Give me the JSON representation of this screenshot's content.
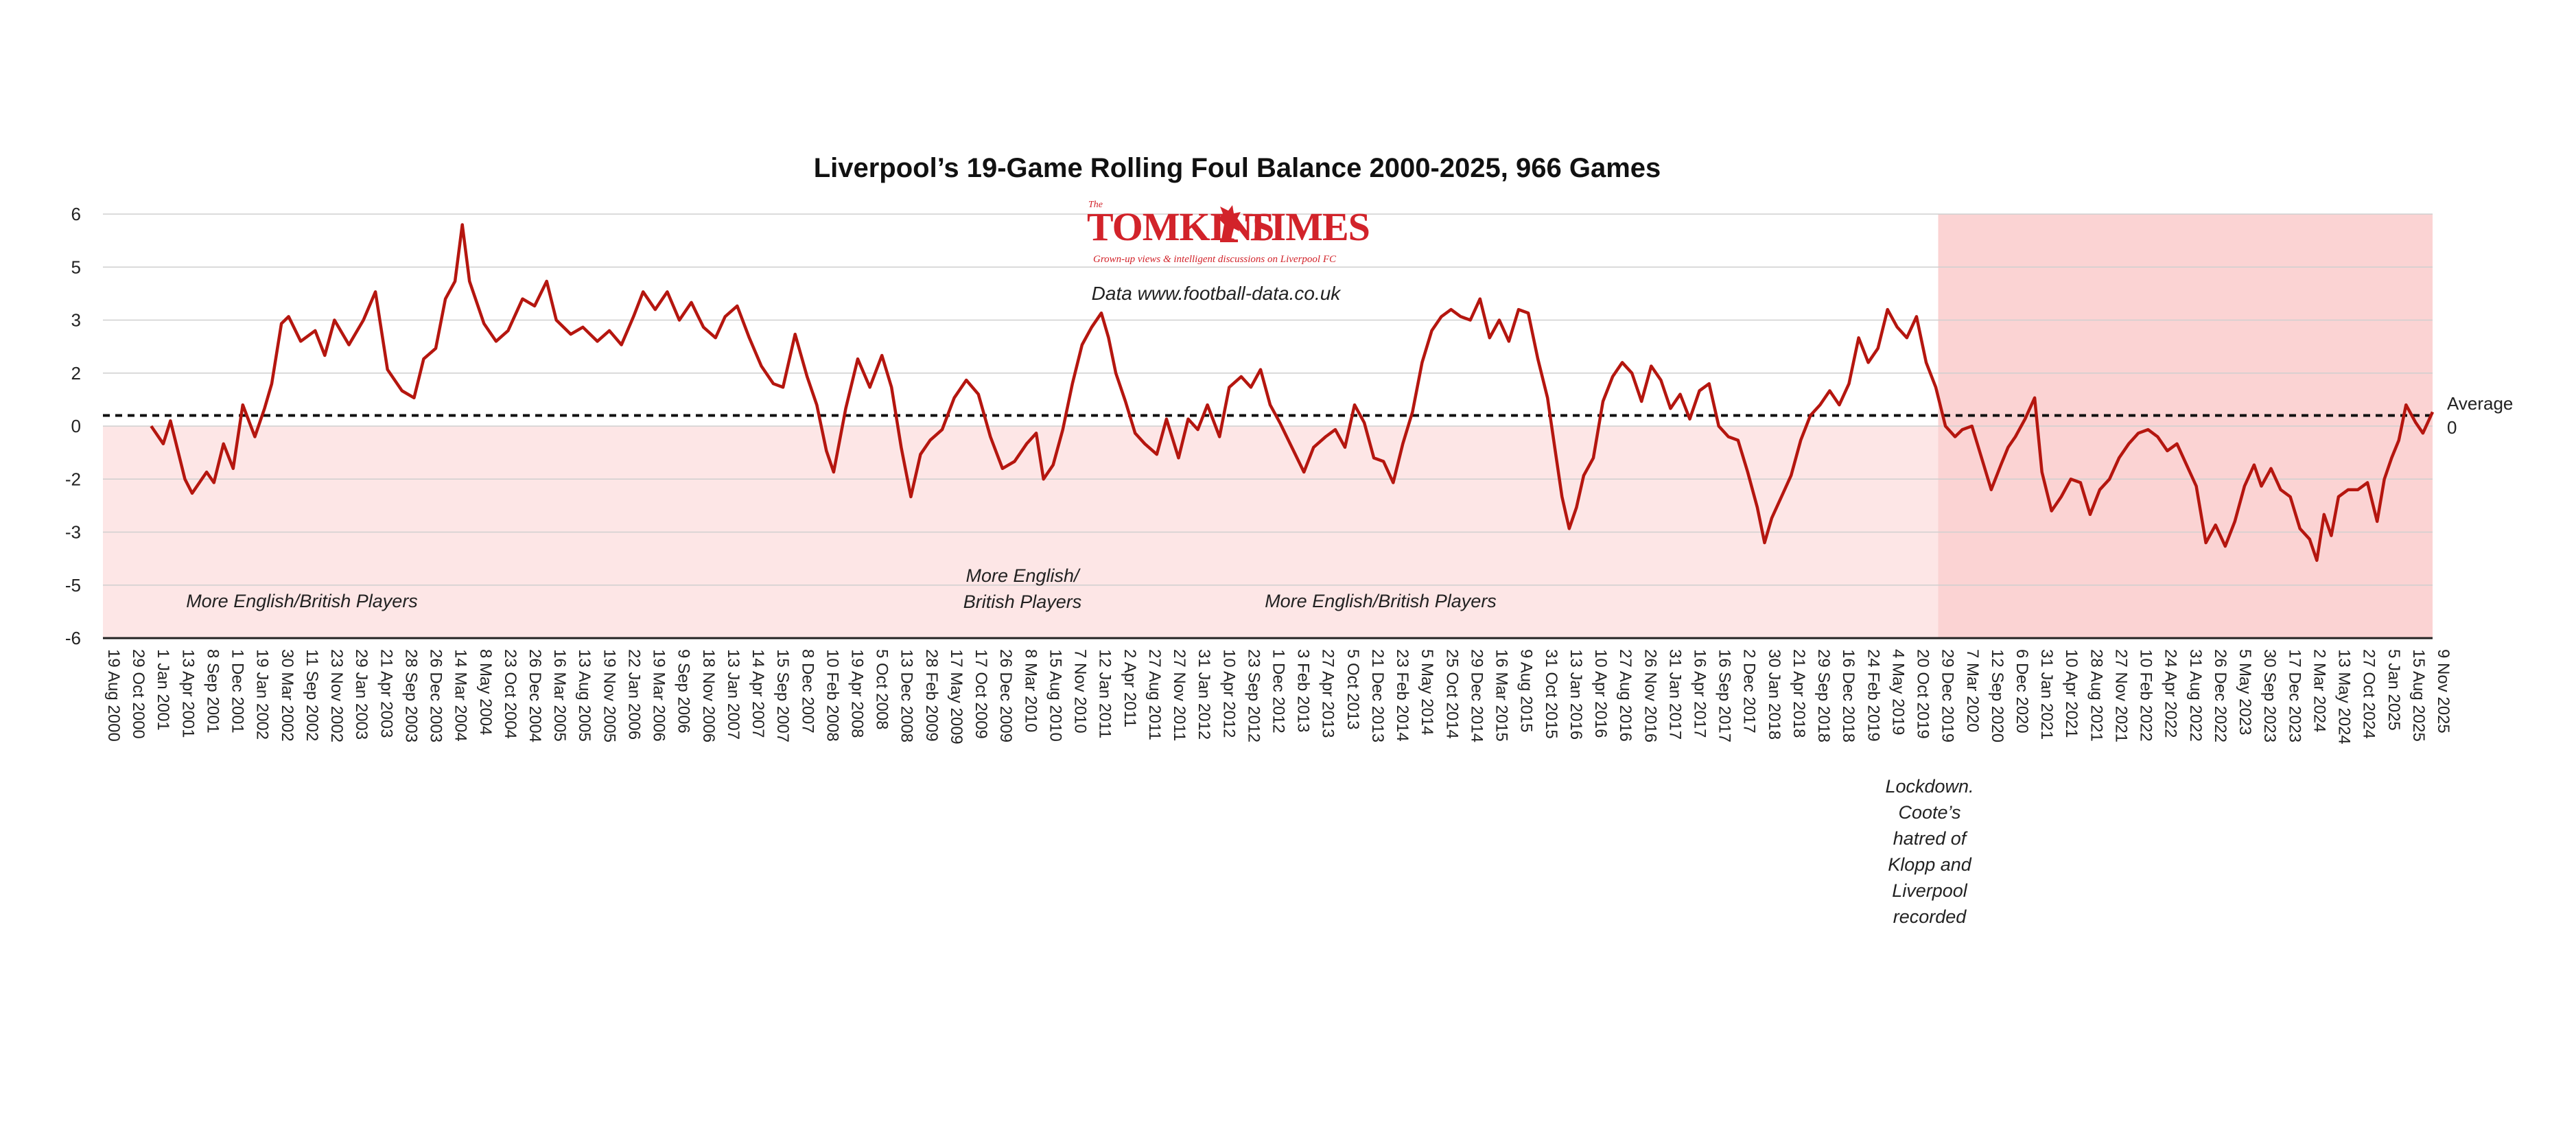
{
  "chart_data": {
    "type": "line",
    "title": "Liverpool’s 19-Game Rolling Foul Balance 2000-2025, 966 Games",
    "source": "Data www.football-data.co.uk",
    "logo": {
      "the": "The",
      "left": "TOMKINS",
      "right": "TIMES",
      "tagline": "Grown-up views & intelligent discussions on Liverpool FC"
    },
    "y_tick_labels": [
      "6",
      "5",
      "3",
      "2",
      "0",
      "-2",
      "-3",
      "-5",
      "-6"
    ],
    "ylim": [
      -6,
      6
    ],
    "grid": true,
    "average": {
      "value": 0.3,
      "label_line1": "Average",
      "label_line2": "0"
    },
    "x_tick_labels": [
      "19 Aug 2000",
      "29 Oct 2000",
      "1 Jan 2001",
      "13 Apr 2001",
      "8 Sep 2001",
      "1 Dec 2001",
      "19 Jan 2002",
      "30 Mar 2002",
      "11 Sep 2002",
      "23 Nov 2002",
      "29 Jan 2003",
      "21 Apr 2003",
      "28 Sep 2003",
      "26 Dec 2003",
      "14 Mar 2004",
      "8 May 2004",
      "23 Oct 2004",
      "26 Dec 2004",
      "16 Mar 2005",
      "13 Aug 2005",
      "19 Nov 2005",
      "22 Jan 2006",
      "19 Mar 2006",
      "9 Sep 2006",
      "18 Nov 2006",
      "13 Jan 2007",
      "14 Apr 2007",
      "15 Sep 2007",
      "8 Dec 2007",
      "10 Feb 2008",
      "19 Apr 2008",
      "5 Oct 2008",
      "13 Dec 2008",
      "28 Feb 2009",
      "17 May 2009",
      "17 Oct 2009",
      "26 Dec 2009",
      "8 Mar 2010",
      "15 Aug 2010",
      "7 Nov 2010",
      "12 Jan 2011",
      "2 Apr 2011",
      "27 Aug 2011",
      "27 Nov 2011",
      "31 Jan 2012",
      "10 Apr 2012",
      "23 Sep 2012",
      "1 Dec 2012",
      "3 Feb 2013",
      "27 Apr 2013",
      "5 Oct 2013",
      "21 Dec 2013",
      "23 Feb 2014",
      "5 May 2014",
      "25 Oct 2014",
      "29 Dec 2014",
      "16 Mar 2015",
      "9 Aug 2015",
      "31 Oct 2015",
      "13 Jan 2016",
      "10 Apr 2016",
      "27 Aug 2016",
      "26 Nov 2016",
      "31 Jan 2017",
      "16 Apr 2017",
      "16 Sep 2017",
      "2 Dec 2017",
      "30 Jan 2018",
      "21 Apr 2018",
      "29 Sep 2018",
      "16 Dec 2018",
      "24 Feb 2019",
      "4 May 2019",
      "20 Oct 2019",
      "29 Dec 2019",
      "7 Mar 2020",
      "12 Sep 2020",
      "6 Dec 2020",
      "31 Jan 2021",
      "10 Apr 2021",
      "28 Aug 2021",
      "27 Nov 2021",
      "10 Feb 2022",
      "24 Apr 2022",
      "31 Aug 2022",
      "26 Dec 2022",
      "5 May 2023",
      "30 Sep 2023",
      "17 Dec 2023",
      "2 Mar 2024",
      "13 May 2024",
      "27 Oct 2024",
      "5 Jan 2025",
      "15 Aug 2025",
      "9 Nov 2025"
    ],
    "series": [
      {
        "color": "#b5160f",
        "points": [
          [
            20,
            0
          ],
          [
            25,
            -0.5
          ],
          [
            28,
            0.15
          ],
          [
            34,
            -1.5
          ],
          [
            37,
            -1.9
          ],
          [
            43,
            -1.3
          ],
          [
            46,
            -1.6
          ],
          [
            50,
            -0.5
          ],
          [
            54,
            -1.2
          ],
          [
            58,
            0.6
          ],
          [
            63,
            -0.3
          ],
          [
            67,
            0.5
          ],
          [
            70,
            1.2
          ],
          [
            74,
            2.9
          ],
          [
            77,
            3.1
          ],
          [
            82,
            2.4
          ],
          [
            88,
            2.7
          ],
          [
            92,
            2.0
          ],
          [
            96,
            3.0
          ],
          [
            102,
            2.3
          ],
          [
            108,
            3.0
          ],
          [
            113,
            3.8
          ],
          [
            118,
            1.6
          ],
          [
            124,
            1.0
          ],
          [
            129,
            0.8
          ],
          [
            133,
            1.9
          ],
          [
            138,
            2.2
          ],
          [
            142,
            3.6
          ],
          [
            146,
            4.1
          ],
          [
            149,
            5.7
          ],
          [
            152,
            4.1
          ],
          [
            158,
            2.9
          ],
          [
            163,
            2.4
          ],
          [
            168,
            2.7
          ],
          [
            174,
            3.6
          ],
          [
            179,
            3.4
          ],
          [
            184,
            4.1
          ],
          [
            188,
            3.0
          ],
          [
            194,
            2.6
          ],
          [
            199,
            2.8
          ],
          [
            205,
            2.4
          ],
          [
            210,
            2.7
          ],
          [
            215,
            2.3
          ],
          [
            220,
            3.1
          ],
          [
            224,
            3.8
          ],
          [
            229,
            3.3
          ],
          [
            234,
            3.8
          ],
          [
            239,
            3.0
          ],
          [
            244,
            3.5
          ],
          [
            249,
            2.8
          ],
          [
            254,
            2.5
          ],
          [
            258,
            3.1
          ],
          [
            263,
            3.4
          ],
          [
            268,
            2.5
          ],
          [
            273,
            1.7
          ],
          [
            278,
            1.2
          ],
          [
            282,
            1.1
          ],
          [
            287,
            2.6
          ],
          [
            292,
            1.4
          ],
          [
            296,
            0.6
          ],
          [
            300,
            -0.7
          ],
          [
            303,
            -1.3
          ],
          [
            308,
            0.5
          ],
          [
            313,
            1.9
          ],
          [
            318,
            1.1
          ],
          [
            323,
            2.0
          ],
          [
            327,
            1.1
          ],
          [
            331,
            -0.6
          ],
          [
            335,
            -2.0
          ],
          [
            339,
            -0.8
          ],
          [
            343,
            -0.4
          ],
          [
            348,
            -0.1
          ],
          [
            353,
            0.8
          ],
          [
            358,
            1.3
          ],
          [
            363,
            0.9
          ],
          [
            368,
            -0.3
          ],
          [
            373,
            -1.2
          ],
          [
            378,
            -1.0
          ],
          [
            383,
            -0.5
          ],
          [
            387,
            -0.2
          ],
          [
            390,
            -1.5
          ],
          [
            394,
            -1.1
          ],
          [
            398,
            -0.1
          ],
          [
            402,
            1.2
          ],
          [
            406,
            2.3
          ],
          [
            410,
            2.8
          ],
          [
            414,
            3.2
          ],
          [
            417,
            2.5
          ],
          [
            420,
            1.5
          ],
          [
            424,
            0.7
          ],
          [
            428,
            -0.2
          ],
          [
            432,
            -0.5
          ],
          [
            437,
            -0.8
          ],
          [
            441,
            0.2
          ],
          [
            446,
            -0.9
          ],
          [
            450,
            0.2
          ],
          [
            454,
            -0.1
          ],
          [
            458,
            0.6
          ],
          [
            463,
            -0.3
          ],
          [
            467,
            1.1
          ],
          [
            472,
            1.4
          ],
          [
            476,
            1.1
          ],
          [
            480,
            1.6
          ],
          [
            484,
            0.6
          ],
          [
            488,
            0.1
          ],
          [
            493,
            -0.6
          ],
          [
            498,
            -1.3
          ],
          [
            502,
            -0.6
          ],
          [
            507,
            -0.3
          ],
          [
            511,
            -0.1
          ],
          [
            515,
            -0.6
          ],
          [
            519,
            0.6
          ],
          [
            523,
            0.1
          ],
          [
            527,
            -0.9
          ],
          [
            531,
            -1.0
          ],
          [
            535,
            -1.6
          ],
          [
            539,
            -0.5
          ],
          [
            543,
            0.4
          ],
          [
            547,
            1.8
          ],
          [
            551,
            2.7
          ],
          [
            555,
            3.1
          ],
          [
            559,
            3.3
          ],
          [
            563,
            3.1
          ],
          [
            567,
            3.0
          ],
          [
            571,
            3.6
          ],
          [
            575,
            2.5
          ],
          [
            579,
            3.0
          ],
          [
            583,
            2.4
          ],
          [
            587,
            3.3
          ],
          [
            591,
            3.2
          ],
          [
            595,
            1.9
          ],
          [
            599,
            0.8
          ],
          [
            602,
            -0.6
          ],
          [
            605,
            -2.0
          ],
          [
            608,
            -2.9
          ],
          [
            611,
            -2.3
          ],
          [
            614,
            -1.4
          ],
          [
            618,
            -0.9
          ],
          [
            622,
            0.7
          ],
          [
            626,
            1.4
          ],
          [
            630,
            1.8
          ],
          [
            634,
            1.5
          ],
          [
            638,
            0.7
          ],
          [
            642,
            1.7
          ],
          [
            646,
            1.3
          ],
          [
            650,
            0.5
          ],
          [
            654,
            0.9
          ],
          [
            658,
            0.2
          ],
          [
            662,
            1.0
          ],
          [
            666,
            1.2
          ],
          [
            670,
            0.0
          ],
          [
            674,
            -0.3
          ],
          [
            678,
            -0.4
          ],
          [
            682,
            -1.3
          ],
          [
            686,
            -2.3
          ],
          [
            689,
            -3.3
          ],
          [
            692,
            -2.6
          ],
          [
            696,
            -2.0
          ],
          [
            700,
            -1.4
          ],
          [
            704,
            -0.4
          ],
          [
            708,
            0.3
          ],
          [
            712,
            0.6
          ],
          [
            716,
            1.0
          ],
          [
            720,
            0.6
          ],
          [
            724,
            1.2
          ],
          [
            728,
            2.5
          ],
          [
            732,
            1.8
          ],
          [
            736,
            2.2
          ],
          [
            740,
            3.3
          ],
          [
            744,
            2.8
          ],
          [
            748,
            2.5
          ],
          [
            752,
            3.1
          ],
          [
            756,
            1.8
          ],
          [
            760,
            1.1
          ],
          [
            764,
            0.0
          ],
          [
            768,
            -0.3
          ],
          [
            771,
            -0.1
          ],
          [
            775,
            0.0
          ],
          [
            779,
            -0.9
          ],
          [
            783,
            -1.8
          ],
          [
            787,
            -1.1
          ],
          [
            790,
            -0.6
          ],
          [
            793,
            -0.3
          ],
          [
            797,
            0.2
          ],
          [
            801,
            0.8
          ],
          [
            804,
            -1.3
          ],
          [
            808,
            -2.4
          ],
          [
            812,
            -2.0
          ],
          [
            816,
            -1.5
          ],
          [
            820,
            -1.6
          ],
          [
            824,
            -2.5
          ],
          [
            828,
            -1.8
          ],
          [
            832,
            -1.5
          ],
          [
            836,
            -0.9
          ],
          [
            840,
            -0.5
          ],
          [
            844,
            -0.2
          ],
          [
            848,
            -0.1
          ],
          [
            852,
            -0.3
          ],
          [
            856,
            -0.7
          ],
          [
            860,
            -0.5
          ],
          [
            864,
            -1.1
          ],
          [
            868,
            -1.7
          ],
          [
            872,
            -3.3
          ],
          [
            876,
            -2.8
          ],
          [
            880,
            -3.4
          ],
          [
            884,
            -2.7
          ],
          [
            888,
            -1.7
          ],
          [
            892,
            -1.1
          ],
          [
            895,
            -1.7
          ],
          [
            899,
            -1.2
          ],
          [
            903,
            -1.8
          ],
          [
            907,
            -2.0
          ],
          [
            911,
            -2.9
          ],
          [
            915,
            -3.2
          ],
          [
            918,
            -3.8
          ],
          [
            921,
            -2.5
          ],
          [
            924,
            -3.1
          ],
          [
            927,
            -2.0
          ],
          [
            931,
            -1.8
          ],
          [
            935,
            -1.8
          ],
          [
            939,
            -1.6
          ],
          [
            943,
            -2.7
          ],
          [
            946,
            -1.5
          ],
          [
            949,
            -0.9
          ],
          [
            952,
            -0.4
          ],
          [
            955,
            0.6
          ],
          [
            959,
            0.1
          ],
          [
            962,
            -0.2
          ],
          [
            966,
            0.4
          ]
        ]
      }
    ],
    "shaded_regions": [
      {
        "from": 0,
        "to": 966,
        "y_from": -6,
        "y_to": 0,
        "color": "#fde6e6"
      },
      {
        "from": 761,
        "to": 966,
        "y_from": -6,
        "y_to": 6,
        "color": "#fbd3d3"
      }
    ],
    "annotations": [
      {
        "lines": [
          "More English/British Players"
        ]
      },
      {
        "lines": [
          "More English/",
          "British Players"
        ]
      },
      {
        "lines": [
          "More English/British Players"
        ]
      },
      {
        "lines": [
          "Lockdown.",
          "Coote’s",
          "hatred of",
          "Klopp and",
          "Liverpool",
          "recorded"
        ]
      }
    ]
  }
}
